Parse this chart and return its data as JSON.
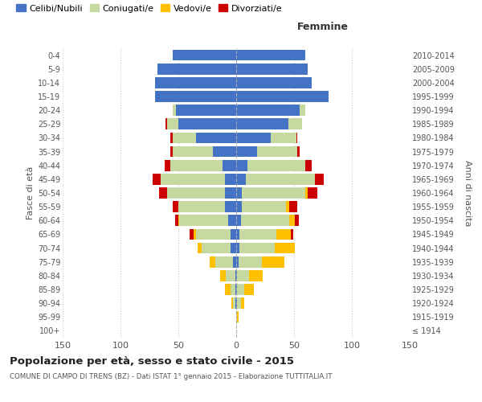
{
  "age_groups": [
    "100+",
    "95-99",
    "90-94",
    "85-89",
    "80-84",
    "75-79",
    "70-74",
    "65-69",
    "60-64",
    "55-59",
    "50-54",
    "45-49",
    "40-44",
    "35-39",
    "30-34",
    "25-29",
    "20-24",
    "15-19",
    "10-14",
    "5-9",
    "0-4"
  ],
  "birth_years": [
    "≤ 1914",
    "1915-1919",
    "1920-1924",
    "1925-1929",
    "1930-1934",
    "1935-1939",
    "1940-1944",
    "1945-1949",
    "1950-1954",
    "1955-1959",
    "1960-1964",
    "1965-1969",
    "1970-1974",
    "1975-1979",
    "1980-1984",
    "1985-1989",
    "1990-1994",
    "1995-1999",
    "2000-2004",
    "2005-2009",
    "2010-2014"
  ],
  "male_celibe": [
    0,
    0,
    1,
    1,
    1,
    3,
    5,
    5,
    7,
    10,
    10,
    10,
    12,
    20,
    35,
    50,
    52,
    70,
    70,
    68,
    55
  ],
  "male_coniugato": [
    0,
    0,
    2,
    4,
    8,
    15,
    25,
    30,
    42,
    40,
    50,
    55,
    45,
    35,
    20,
    10,
    3,
    0,
    0,
    0,
    0
  ],
  "male_vedovo": [
    0,
    0,
    1,
    5,
    5,
    5,
    3,
    2,
    1,
    0,
    0,
    0,
    0,
    0,
    0,
    0,
    0,
    0,
    0,
    0,
    0
  ],
  "male_divorziato": [
    0,
    0,
    0,
    0,
    0,
    0,
    0,
    3,
    3,
    5,
    7,
    7,
    5,
    2,
    2,
    1,
    0,
    0,
    0,
    0,
    0
  ],
  "female_celibe": [
    0,
    0,
    1,
    1,
    1,
    2,
    3,
    3,
    4,
    5,
    5,
    8,
    10,
    18,
    30,
    45,
    55,
    80,
    65,
    62,
    60
  ],
  "female_coniugata": [
    0,
    1,
    3,
    6,
    10,
    20,
    30,
    32,
    42,
    38,
    55,
    60,
    50,
    35,
    22,
    12,
    5,
    0,
    0,
    0,
    0
  ],
  "female_vedova": [
    0,
    1,
    3,
    8,
    12,
    20,
    18,
    12,
    5,
    3,
    2,
    0,
    0,
    0,
    0,
    0,
    0,
    0,
    0,
    0,
    0
  ],
  "female_divorziata": [
    0,
    0,
    0,
    0,
    0,
    0,
    0,
    2,
    3,
    7,
    8,
    8,
    5,
    2,
    1,
    0,
    0,
    0,
    0,
    0,
    0
  ],
  "color_celibe": "#4472c4",
  "color_coniugato": "#c5d9a0",
  "color_vedovo": "#ffc000",
  "color_divorziato": "#cc0000",
  "title": "Popolazione per età, sesso e stato civile - 2015",
  "subtitle": "COMUNE DI CAMPO DI TRENS (BZ) - Dati ISTAT 1° gennaio 2015 - Elaborazione TUTTITALIA.IT",
  "xlabel_right": "Femmine",
  "ylabel_left": "Fasce di età",
  "ylabel_right": "Anni di nascita",
  "xlim": 150,
  "background_color": "#ffffff",
  "grid_color": "#cccccc"
}
